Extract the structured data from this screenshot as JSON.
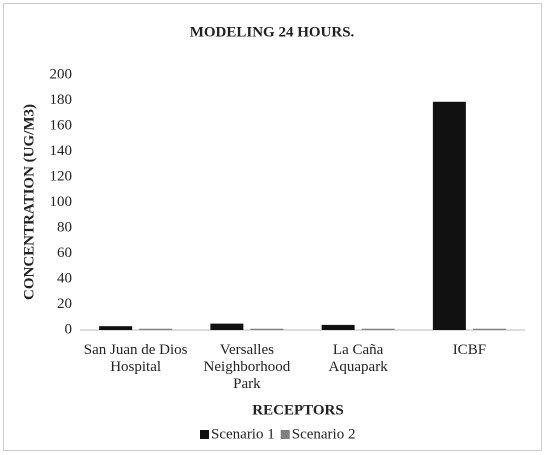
{
  "chart_data": {
    "type": "bar",
    "title": "MODELING 24 HOURS.",
    "y_label": "CONCENTRATION (UG/M3)",
    "x_label": "RECEPTORS",
    "categories": [
      "San Juan de Dios Hospital",
      "Versalles Neighborhood Park",
      "La Caña Aquapark",
      "ICBF"
    ],
    "series": [
      {
        "name": "Scenario 1",
        "color": "#111111",
        "values": [
          3,
          5,
          4,
          179
        ]
      },
      {
        "name": "Scenario 2",
        "color": "#7f7f7f",
        "values": [
          1,
          1,
          1,
          1
        ]
      }
    ],
    "ylim": [
      0,
      200
    ],
    "yticks": [
      0,
      20,
      40,
      60,
      80,
      100,
      120,
      140,
      160,
      180,
      200
    ],
    "grid": false,
    "legend": "bottom"
  }
}
